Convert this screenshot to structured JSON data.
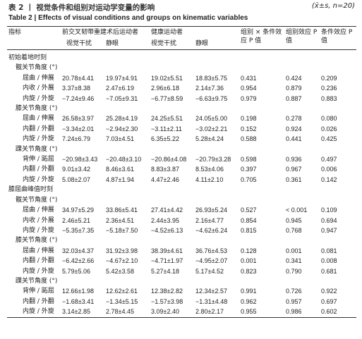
{
  "title_cn": "表 2 丨 视觉条件和组别对运动学变量的影响",
  "stats_note": "(x̄±s, n=20)",
  "title_en": "Table 2 | Effects of visual conditions and groups on kinematic variables",
  "header": {
    "indicator": "指标",
    "group_acl": "前交叉韧带重建术后运动者",
    "group_healthy": "健康运动者",
    "p_interaction": "组别 × 条件效应 P 值",
    "p_group": "组别效应 P 值",
    "p_condition": "条件效应 P 值",
    "sub": [
      "视觉干扰",
      "静眼",
      "视觉干扰",
      "静眼"
    ]
  },
  "sections": [
    {
      "title": "初始着地时刻",
      "groups": [
        {
          "title": "髋关节角度 (°)",
          "rows": [
            [
              "屈曲 / 伸展",
              "20.78±4.41",
              "19.97±4.91",
              "19.02±5.51",
              "18.83±5.75",
              "0.431",
              "0.424",
              "0.209"
            ],
            [
              "内收 / 外展",
              "3.37±8.38",
              "2.47±6.19",
              "2.96±6.18",
              "2.14±7.36",
              "0.954",
              "0.879",
              "0.236"
            ],
            [
              "内旋 / 外旋",
              "−7.24±9.46",
              "−7.05±9.31",
              "−6.77±8.59",
              "−6.63±9.75",
              "0.979",
              "0.887",
              "0.883"
            ]
          ]
        },
        {
          "title": "膝关节角度 (°)",
          "rows": [
            [
              "屈曲 / 伸展",
              "26.58±3.97",
              "25.28±4.19",
              "24.25±5.51",
              "24.05±5.00",
              "0.198",
              "0.278",
              "0.080"
            ],
            [
              "内翻 / 外翻",
              "−3.34±2.01",
              "−2.94±2.30",
              "−3.11±2.11",
              "−3.02±2.21",
              "0.152",
              "0.924",
              "0.026"
            ],
            [
              "内旋 / 外旋",
              "7.24±6.79",
              "7.03±4.51",
              "6.35±5.22",
              "5.28±4.24",
              "0.588",
              "0.441",
              "0.425"
            ]
          ]
        },
        {
          "title": "踝关节角度 (°)",
          "rows": [
            [
              "背伸 / 跖屈",
              "−20.98±3.43",
              "−20.48±3.10",
              "−20.86±4.08",
              "−20.79±3.28",
              "0.598",
              "0.936",
              "0.497"
            ],
            [
              "内翻 / 外翻",
              "9.01±3.42",
              "8.46±3.61",
              "8.83±3.87",
              "8.53±4.06",
              "0.397",
              "0.967",
              "0.006"
            ],
            [
              "内旋 / 外旋",
              "5.08±2.07",
              "4.87±1.94",
              "4.47±2.46",
              "4.11±2.10",
              "0.705",
              "0.361",
              "0.142"
            ]
          ]
        }
      ]
    },
    {
      "title": "膝屈曲峰值时刻",
      "groups": [
        {
          "title": "髋关节角度 (°)",
          "rows": [
            [
              "屈曲 / 伸展",
              "34.97±5.29",
              "33.86±5.41",
              "27.41±4.42",
              "26.93±5.24",
              "0.527",
              "< 0.001",
              "0.109"
            ],
            [
              "内收 / 外展",
              "2.46±5.21",
              "2.36±4.51",
              "2.44±3.95",
              "2.16±4.77",
              "0.854",
              "0.945",
              "0.694"
            ],
            [
              "内旋 / 外旋",
              "−5.35±7.35",
              "−5.18±7.50",
              "−4.52±6.13",
              "−4.62±6.24",
              "0.815",
              "0.768",
              "0.947"
            ]
          ]
        },
        {
          "title": "膝关节角度 (°)",
          "rows": [
            [
              "屈曲 / 伸展",
              "32.03±4.37",
              "31.92±3.98",
              "38.39±4.61",
              "36.76±4.53",
              "0.128",
              "0.001",
              "0.081"
            ],
            [
              "内翻 / 外翻",
              "−6.42±2.66",
              "−4.67±2.10",
              "−4.71±1.97",
              "−4.95±2.07",
              "0.001",
              "0.341",
              "0.008"
            ],
            [
              "内旋 / 外旋",
              "5.79±5.06",
              "5.42±3.58",
              "5.27±4.18",
              "5.17±4.52",
              "0.823",
              "0.790",
              "0.681"
            ]
          ]
        },
        {
          "title": "踝关节角度 (°)",
          "rows": [
            [
              "背伸 / 跖屈",
              "12.66±1.98",
              "12.62±2.61",
              "12.38±2.82",
              "12.34±2.57",
              "0.991",
              "0.726",
              "0.922"
            ],
            [
              "内翻 / 外翻",
              "−1.68±3.41",
              "−1.34±5.15",
              "−1.57±3.98",
              "−1.31±4.48",
              "0.962",
              "0.957",
              "0.697"
            ],
            [
              "内旋 / 外旋",
              "3.14±2.85",
              "2.78±4.45",
              "3.09±2.40",
              "2.80±2.17",
              "0.955",
              "0.986",
              "0.602"
            ]
          ]
        }
      ]
    }
  ]
}
